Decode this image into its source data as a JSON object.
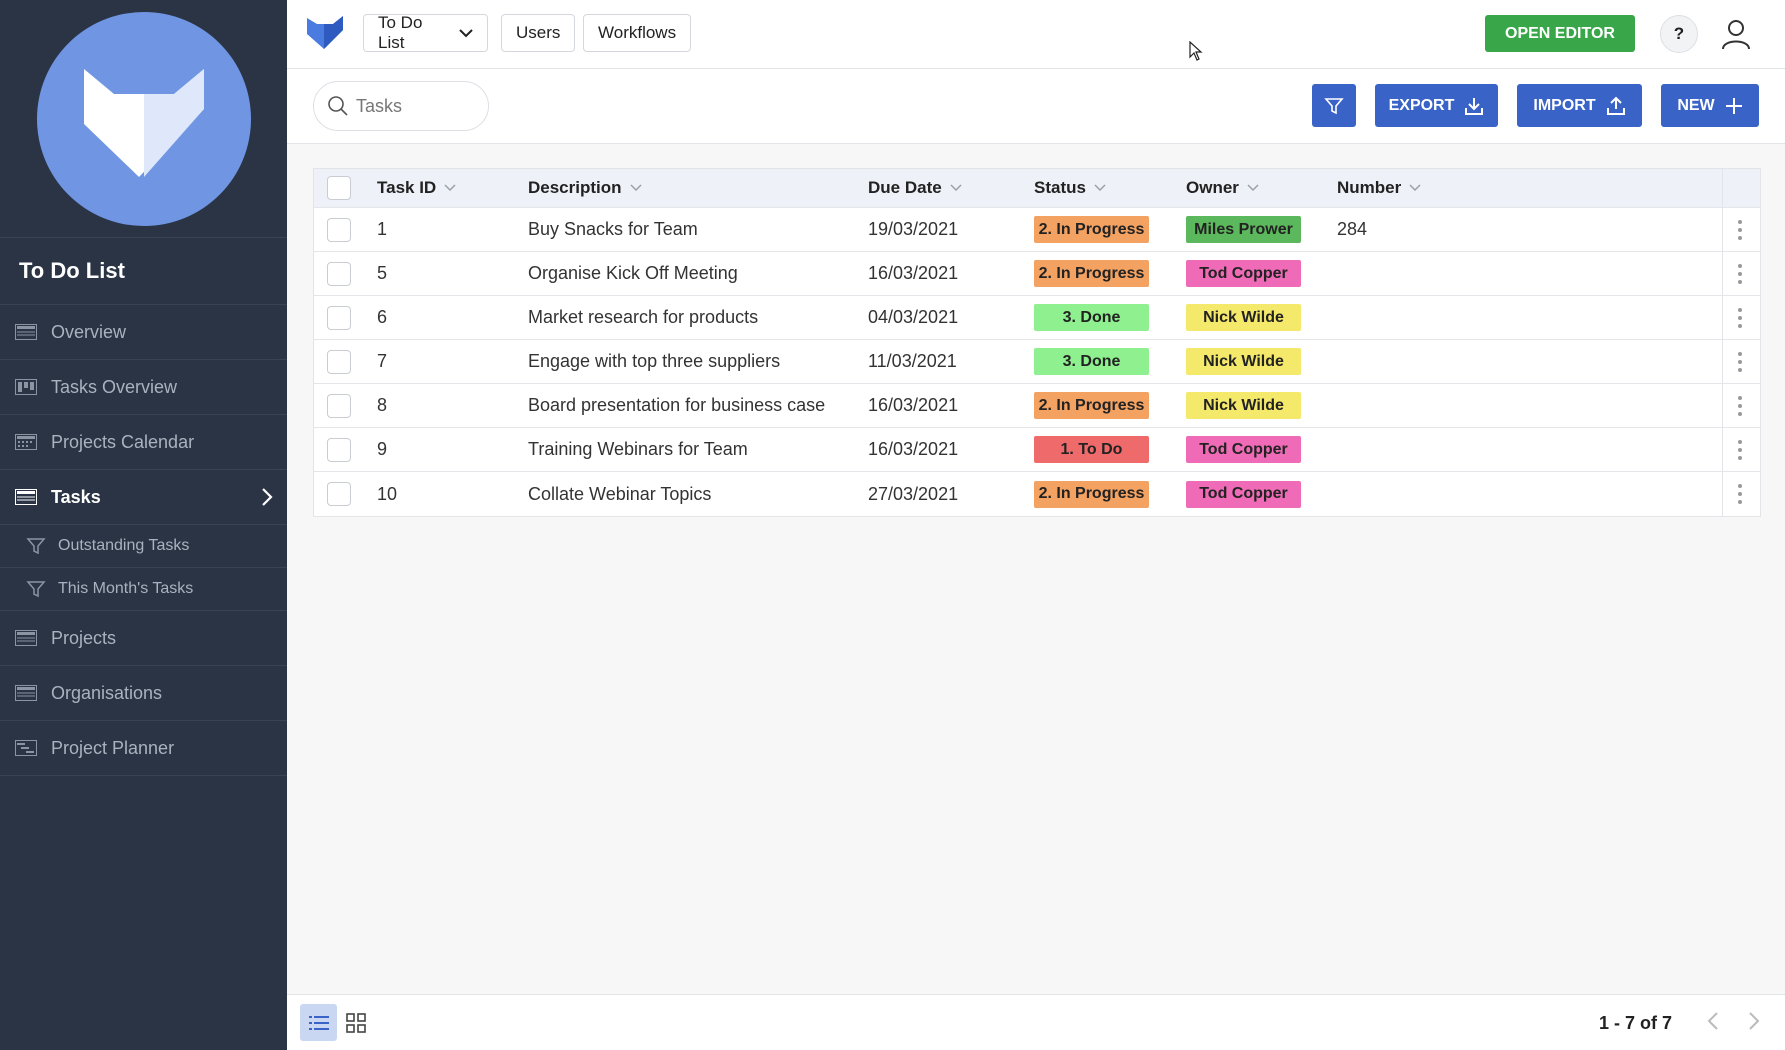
{
  "sidebar": {
    "app_title": "To Do List",
    "items": [
      {
        "label": "Overview",
        "icon": "table-icon"
      },
      {
        "label": "Tasks Overview",
        "icon": "kanban-icon"
      },
      {
        "label": "Projects Calendar",
        "icon": "calendar-icon"
      },
      {
        "label": "Tasks",
        "icon": "table-icon",
        "active": true
      },
      {
        "label": "Outstanding Tasks",
        "icon": "filter-icon"
      },
      {
        "label": "This Month's Tasks",
        "icon": "filter-icon"
      },
      {
        "label": "Projects",
        "icon": "table-icon"
      },
      {
        "label": "Organisations",
        "icon": "table-icon"
      },
      {
        "label": "Project Planner",
        "icon": "gantt-icon"
      }
    ]
  },
  "topbar": {
    "app_dropdown": "To Do List",
    "users": "Users",
    "workflows": "Workflows",
    "open_editor": "OPEN EDITOR",
    "help": "?"
  },
  "toolbar": {
    "search_placeholder": "Tasks",
    "export": "EXPORT",
    "import": "IMPORT",
    "new": "NEW"
  },
  "table": {
    "headers": {
      "task_id": "Task ID",
      "description": "Description",
      "due_date": "Due Date",
      "status": "Status",
      "owner": "Owner",
      "number": "Number"
    },
    "rows": [
      {
        "id": "1",
        "description": "Buy Snacks for Team",
        "due": "19/03/2021",
        "status": "2. In Progress",
        "status_color": "#f4a261",
        "owner": "Miles Prower",
        "owner_color": "#5cb85c",
        "number": "284"
      },
      {
        "id": "5",
        "description": "Organise Kick Off Meeting",
        "due": "16/03/2021",
        "status": "2. In Progress",
        "status_color": "#f4a261",
        "owner": "Tod Copper",
        "owner_color": "#f06bb7",
        "number": ""
      },
      {
        "id": "6",
        "description": "Market research for products",
        "due": "04/03/2021",
        "status": "3. Done",
        "status_color": "#8ef08e",
        "owner": "Nick Wilde",
        "owner_color": "#f5e96b",
        "number": ""
      },
      {
        "id": "7",
        "description": "Engage with top three suppliers",
        "due": "11/03/2021",
        "status": "3. Done",
        "status_color": "#8ef08e",
        "owner": "Nick Wilde",
        "owner_color": "#f5e96b",
        "number": ""
      },
      {
        "id": "8",
        "description": "Board presentation for business case",
        "due": "16/03/2021",
        "status": "2. In Progress",
        "status_color": "#f4a261",
        "owner": "Nick Wilde",
        "owner_color": "#f5e96b",
        "number": ""
      },
      {
        "id": "9",
        "description": "Training Webinars for Team",
        "due": "16/03/2021",
        "status": "1. To Do",
        "status_color": "#ef6b6b",
        "owner": "Tod Copper",
        "owner_color": "#f06bb7",
        "number": ""
      },
      {
        "id": "10",
        "description": "Collate Webinar Topics",
        "due": "27/03/2021",
        "status": "2. In Progress",
        "status_color": "#f4a261",
        "owner": "Tod Copper",
        "owner_color": "#f06bb7",
        "number": ""
      }
    ]
  },
  "footer": {
    "pagination": "1 - 7 of 7"
  },
  "colors": {
    "sidebar_bg": "#2b3445",
    "accent_blue": "#3a63c8",
    "editor_green": "#3aa64a",
    "logo_blue": "#6f95e3"
  }
}
